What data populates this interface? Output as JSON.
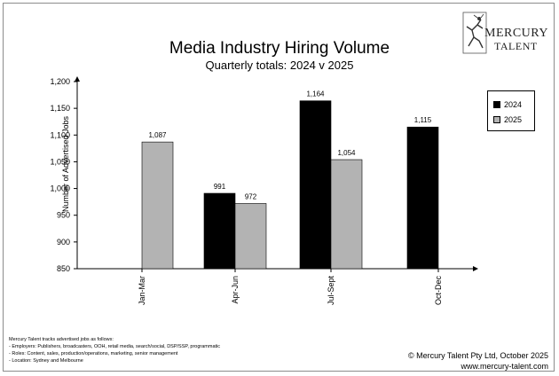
{
  "header": {
    "title": "Media Industry Hiring Volume",
    "subtitle": "Quarterly totals: 2024 v 2025"
  },
  "logo": {
    "line1": "MERCURY",
    "line2": "TALENT"
  },
  "chart_data": {
    "type": "bar",
    "categories": [
      "Jan-Mar",
      "Apr-Jun",
      "Jul-Sept",
      "Oct-Dec"
    ],
    "series": [
      {
        "name": "2024",
        "values": [
          null,
          991,
          1164,
          1115
        ],
        "labels": [
          "",
          "991",
          "1,164",
          "1,115"
        ],
        "color": "#000000"
      },
      {
        "name": "2025",
        "values": [
          1087,
          972,
          1054,
          null
        ],
        "labels": [
          "1,087",
          "972",
          "1,054",
          ""
        ],
        "color": "#b3b3b3"
      }
    ],
    "ylabel": "Number of Advertised Jobs",
    "ylim": [
      850,
      1200
    ],
    "yticks": [
      850,
      900,
      950,
      1000,
      1050,
      1100,
      1150,
      1200
    ],
    "ytick_labels": [
      "850",
      "900",
      "950",
      "1,000",
      "1,050",
      "1,100",
      "1,150",
      "1,200"
    ],
    "legend_position": "right",
    "grid": false
  },
  "notes": [
    "Mercury Talent tracks advertised jobs as follows:",
    "- Employers: Publishers, broadcasters, OOH, retail media, search/social, DSP/SSP, programmatic",
    "- Roles: Content, sales, production/operations, marketing, senior management",
    "- Location: Sydney and Melbourne"
  ],
  "footer": {
    "copyright": "© Mercury Talent Pty Ltd, October 2025",
    "url": "www.mercury-talent.com"
  }
}
